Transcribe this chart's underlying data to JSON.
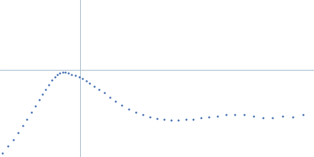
{
  "background_color": "#ffffff",
  "axis_color": "#aabfcf",
  "dot_color": "#2d5fa8",
  "dot_size": 3,
  "fig_width": 4.0,
  "fig_height": 2.0,
  "dpi": 100,
  "xlim": [
    0.0,
    1.0
  ],
  "ylim": [
    0.0,
    1.0
  ],
  "vline_x": 0.254,
  "hline_y": 0.555,
  "xy_data": [
    [
      0.008,
      0.025
    ],
    [
      0.025,
      0.068
    ],
    [
      0.042,
      0.112
    ],
    [
      0.058,
      0.155
    ],
    [
      0.072,
      0.198
    ],
    [
      0.086,
      0.242
    ],
    [
      0.1,
      0.285
    ],
    [
      0.112,
      0.325
    ],
    [
      0.124,
      0.365
    ],
    [
      0.135,
      0.4
    ],
    [
      0.145,
      0.432
    ],
    [
      0.155,
      0.462
    ],
    [
      0.165,
      0.488
    ],
    [
      0.174,
      0.508
    ],
    [
      0.183,
      0.524
    ],
    [
      0.191,
      0.535
    ],
    [
      0.2,
      0.54
    ],
    [
      0.208,
      0.538
    ],
    [
      0.218,
      0.533
    ],
    [
      0.228,
      0.526
    ],
    [
      0.24,
      0.518
    ],
    [
      0.252,
      0.51
    ],
    [
      0.263,
      0.498
    ],
    [
      0.274,
      0.484
    ],
    [
      0.286,
      0.47
    ],
    [
      0.3,
      0.452
    ],
    [
      0.315,
      0.432
    ],
    [
      0.332,
      0.408
    ],
    [
      0.35,
      0.382
    ],
    [
      0.368,
      0.356
    ],
    [
      0.388,
      0.33
    ],
    [
      0.41,
      0.305
    ],
    [
      0.432,
      0.285
    ],
    [
      0.455,
      0.268
    ],
    [
      0.478,
      0.255
    ],
    [
      0.5,
      0.245
    ],
    [
      0.522,
      0.238
    ],
    [
      0.545,
      0.234
    ],
    [
      0.568,
      0.235
    ],
    [
      0.592,
      0.238
    ],
    [
      0.616,
      0.242
    ],
    [
      0.64,
      0.248
    ],
    [
      0.665,
      0.255
    ],
    [
      0.692,
      0.262
    ],
    [
      0.72,
      0.27
    ],
    [
      0.748,
      0.272
    ],
    [
      0.778,
      0.268
    ],
    [
      0.808,
      0.258
    ],
    [
      0.838,
      0.248
    ],
    [
      0.868,
      0.252
    ],
    [
      0.9,
      0.26
    ],
    [
      0.932,
      0.255
    ],
    [
      0.965,
      0.272
    ]
  ]
}
